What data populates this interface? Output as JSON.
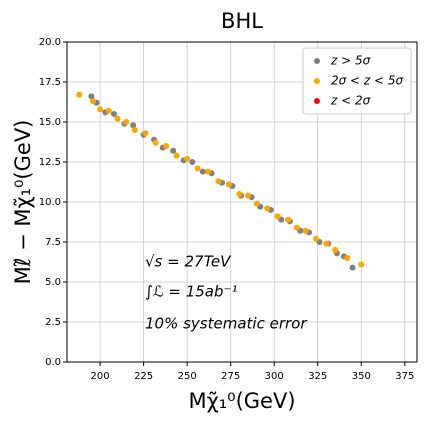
{
  "chart_data": {
    "type": "scatter",
    "title": "BHL",
    "xlabel": "Mχ̃₁⁰(GeV)",
    "ylabel": "Mℓ̃ − Mχ̃₁⁰(GeV)",
    "annotations": [
      "√s = 27TeV",
      "∫ℒ = 15ab⁻¹",
      "10% systematic error"
    ],
    "xlim": [
      181,
      382
    ],
    "ylim": [
      0,
      20
    ],
    "xticks": [
      200,
      225,
      250,
      275,
      300,
      325,
      350,
      375
    ],
    "yticks": [
      {
        "value": 0,
        "label": "0.0"
      },
      2.5,
      {
        "value": 5,
        "label": "5.0"
      },
      7.5,
      {
        "value": 10,
        "label": "10.0"
      },
      12.5,
      {
        "value": 15,
        "label": "15.0"
      },
      17.5,
      {
        "value": 20,
        "label": "20.0"
      }
    ],
    "grid": true,
    "legend": "upper right",
    "series": [
      {
        "name": "z > 5σ",
        "color": "#808080",
        "x": [
          195,
          198,
          203,
          208,
          214,
          219,
          225,
          231,
          236,
          242,
          248,
          253,
          259,
          264,
          270,
          276,
          281,
          287,
          292,
          298,
          304,
          309,
          315,
          320,
          326,
          331,
          336,
          340,
          345
        ],
        "values": [
          16.6,
          16.2,
          15.6,
          15.5,
          14.9,
          14.8,
          14.2,
          13.9,
          13.4,
          13.2,
          12.6,
          12.5,
          11.9,
          11.8,
          11.2,
          11.0,
          10.4,
          10.3,
          9.7,
          9.5,
          8.9,
          8.8,
          8.2,
          8.1,
          7.5,
          7.4,
          6.8,
          6.6,
          5.9
        ]
      },
      {
        "name": "2σ < z < 5σ",
        "color": "#ffa500",
        "x": [
          188,
          196,
          200,
          205,
          210,
          215,
          220,
          226,
          232,
          238,
          244,
          250,
          256,
          262,
          268,
          274,
          280,
          285,
          290,
          296,
          302,
          308,
          313,
          318,
          324,
          330,
          335,
          342,
          350
        ],
        "values": [
          16.7,
          16.3,
          15.8,
          15.7,
          15.2,
          15.0,
          14.5,
          14.3,
          13.7,
          13.5,
          12.9,
          12.7,
          12.1,
          11.9,
          11.3,
          11.1,
          10.5,
          10.4,
          9.9,
          9.6,
          9.1,
          8.9,
          8.4,
          8.2,
          7.7,
          7.4,
          7.0,
          6.5,
          6.1
        ]
      },
      {
        "name": "z < 2σ",
        "color": "#ff0000",
        "x": [],
        "values": []
      }
    ]
  }
}
